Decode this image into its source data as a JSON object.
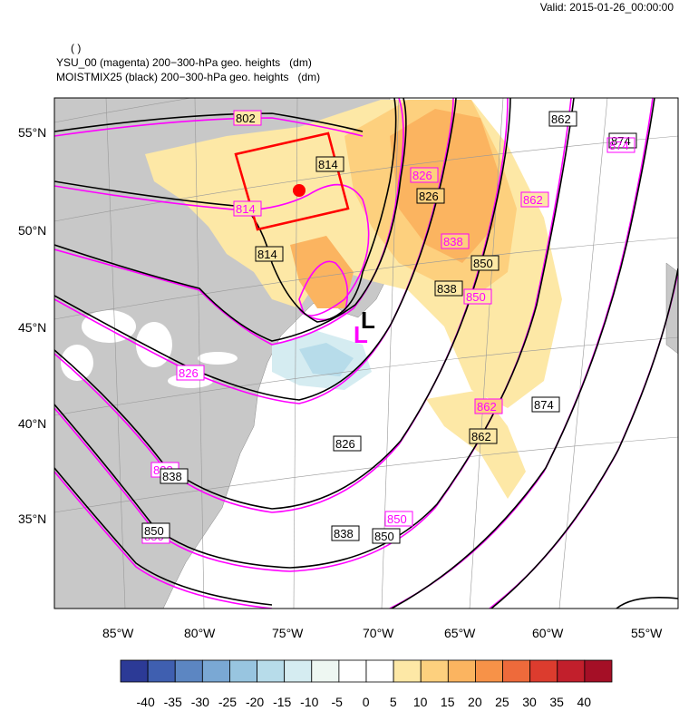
{
  "header": {
    "valid": "Valid: 2015-01-26_00:00:00",
    "line0": "( )",
    "line1": "YSU_00 (magenta) 200−300-hPa geo. heights   (dm)",
    "line2": "MOISTMIX25 (black) 200−300-hPa geo. heights   (dm)"
  },
  "map": {
    "lat_labels": [
      "55°N",
      "50°N",
      "45°N",
      "40°N",
      "35°N"
    ],
    "lon_labels": [
      "85°W",
      "80°W",
      "75°W",
      "70°W",
      "65°W",
      "60°W",
      "55°W"
    ],
    "low_marker_black": "L",
    "low_marker_magenta": "L",
    "contour_labels": {
      "c802": "802",
      "c814a": "814",
      "c814b": "814",
      "c814m": "814",
      "c826a": "826",
      "c826b": "826",
      "c826m1": "826",
      "c826m2": "826",
      "c838a": "838",
      "c838b": "838",
      "c838c": "838",
      "c838m1": "838",
      "c838m2": "838",
      "c850a": "850",
      "c850b": "850",
      "c850c": "850",
      "c850m1": "850",
      "c850m2": "850",
      "c850m3": "850",
      "c862a": "862",
      "c862b": "862",
      "c862m1": "862",
      "c862m2": "862",
      "c874a": "874",
      "c874b": "874",
      "c874m": "874"
    },
    "colors": {
      "black_contour": "#000000",
      "magenta_contour": "#ff00ff",
      "box": "#ff0000",
      "land": "#c8c8c8"
    }
  },
  "colorbar": {
    "labels": [
      "-40",
      "-35",
      "-30",
      "-25",
      "-20",
      "-15",
      "-10",
      "-5",
      "0",
      "5",
      "10",
      "15",
      "20",
      "25",
      "30",
      "35",
      "40"
    ],
    "colors": [
      "#2c3a96",
      "#3f5fb0",
      "#5c86c2",
      "#7aa8d4",
      "#98c5e0",
      "#b7dcea",
      "#d5ecf1",
      "#eef7f2",
      "#ffffff",
      "#ffffff",
      "#fde8a6",
      "#fdd07e",
      "#fbb460",
      "#f79248",
      "#ee6a3b",
      "#dc3c2e",
      "#c21f2c",
      "#a50f26"
    ]
  }
}
